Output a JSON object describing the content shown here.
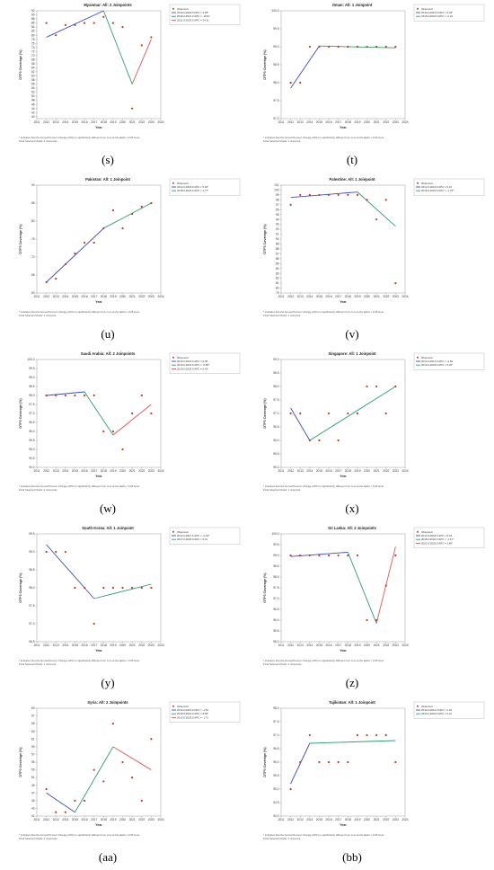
{
  "footnote_line1": "* Indicates that the Annual Percent Change (APC) is significantly different from zero at the alpha = 0.05 level.",
  "marker_color": "#c0392b",
  "segment_colors": [
    "#3b4cc0",
    "#2e9e6e",
    "#e05555"
  ],
  "chart_data": [
    {
      "id": "s",
      "letter": "(s)",
      "type": "line",
      "title": "Myanmar: All: 2 Joinpoints",
      "xlabel": "Year",
      "ylabel": "DTP3 Coverage (%)",
      "xlim": [
        2011,
        2024
      ],
      "ylim": [
        39,
        92
      ],
      "yticks": [
        40,
        42,
        44,
        46,
        48,
        50,
        52,
        54,
        56,
        58,
        60,
        62,
        64,
        66,
        68,
        70,
        72,
        74,
        76,
        78,
        80,
        82,
        84,
        86,
        88,
        90,
        92
      ],
      "observed_label": "Observed",
      "legend": [
        "2012.0-2018.0 APC = 4.29*",
        "2018.0-2021.0 APC = -18.97",
        "2021.0-2023.0 APC = 24.11"
      ],
      "observed": [
        [
          2012,
          86
        ],
        [
          2013,
          80
        ],
        [
          2014,
          85
        ],
        [
          2015,
          85
        ],
        [
          2016,
          86
        ],
        [
          2017,
          86
        ],
        [
          2018,
          89
        ],
        [
          2019,
          86
        ],
        [
          2020,
          84
        ],
        [
          2021,
          44
        ],
        [
          2022,
          75
        ],
        [
          2023,
          79
        ]
      ],
      "segments": [
        [
          [
            2012,
            79
          ],
          [
            2018,
            92
          ]
        ],
        [
          [
            2018,
            92
          ],
          [
            2021,
            56
          ]
        ],
        [
          [
            2021,
            56
          ],
          [
            2023,
            78
          ]
        ]
      ],
      "foot2": "Final Selected Model: 2 Joinpoints."
    },
    {
      "id": "t",
      "letter": "(t)",
      "type": "line",
      "title": "Oman: All: 1 Joinpoint",
      "xlabel": "Year",
      "ylabel": "DTP3 Coverage (%)",
      "xlim": [
        2011,
        2024
      ],
      "ylim": [
        97,
        100
      ],
      "yticks": [
        97.0,
        97.5,
        98.0,
        98.5,
        99.0,
        99.5,
        100.0
      ],
      "observed_label": "Observed",
      "legend": [
        "2012.0-2015.0 APC = 0.49*",
        "2015.0-2023.0 APC = -0.01"
      ],
      "observed": [
        [
          2012,
          98
        ],
        [
          2013,
          98
        ],
        [
          2014,
          99
        ],
        [
          2015,
          99
        ],
        [
          2016,
          99
        ],
        [
          2017,
          99
        ],
        [
          2018,
          99
        ],
        [
          2019,
          99
        ],
        [
          2020,
          99
        ],
        [
          2021,
          99
        ],
        [
          2022,
          99
        ],
        [
          2023,
          99
        ]
      ],
      "segments": [
        [
          [
            2012,
            97.85
          ],
          [
            2015,
            99.02
          ]
        ],
        [
          [
            2015,
            99.02
          ],
          [
            2023,
            98.97
          ]
        ]
      ],
      "foot2": "Final Selected Model: 1 Joinpoint."
    },
    {
      "id": "u",
      "letter": "(u)",
      "type": "line",
      "title": "Pakistan: All: 1 Joinpoint",
      "xlabel": "Year",
      "ylabel": "DTP3 Coverage (%)",
      "xlim": [
        2011,
        2024
      ],
      "ylim": [
        60,
        90
      ],
      "yticks": [
        60,
        65,
        70,
        75,
        80,
        85,
        90
      ],
      "observed_label": "Observed",
      "legend": [
        "2012.0-2018.0 APC = 5.02*",
        "2018.0-2023.0 APC = 1.77*"
      ],
      "observed": [
        [
          2012,
          63
        ],
        [
          2013,
          64
        ],
        [
          2014,
          68
        ],
        [
          2015,
          71
        ],
        [
          2016,
          74
        ],
        [
          2017,
          74
        ],
        [
          2018,
          78
        ],
        [
          2019,
          83
        ],
        [
          2020,
          78
        ],
        [
          2021,
          82
        ],
        [
          2022,
          84
        ],
        [
          2023,
          85
        ]
      ],
      "segments": [
        [
          [
            2012,
            63
          ],
          [
            2018,
            78
          ]
        ],
        [
          [
            2018,
            78
          ],
          [
            2023,
            85
          ]
        ]
      ],
      "foot2": "Final Selected Model: 1 Joinpoint."
    },
    {
      "id": "v",
      "letter": "(v)",
      "type": "line",
      "title": "Palestine: All: 1 Joinpoint",
      "xlabel": "Year",
      "ylabel": "DTP3 Coverage (%)",
      "xlim": [
        2011,
        2024
      ],
      "ylim": [
        79,
        101
      ],
      "yticks": [
        79,
        80,
        81,
        82,
        83,
        84,
        85,
        86,
        87,
        88,
        89,
        90,
        91,
        92,
        93,
        94,
        95,
        96,
        97,
        98,
        99,
        100,
        101
      ],
      "observed_label": "Observed",
      "legend": [
        "2012.0-2019.0 APC = 0.16",
        "2019.0-2023.0 APC = -1.79*"
      ],
      "observed": [
        [
          2012,
          97
        ],
        [
          2013,
          99
        ],
        [
          2014,
          99
        ],
        [
          2015,
          99
        ],
        [
          2016,
          99
        ],
        [
          2017,
          99
        ],
        [
          2018,
          99
        ],
        [
          2019,
          99
        ],
        [
          2020,
          98
        ],
        [
          2021,
          94
        ],
        [
          2022,
          98
        ],
        [
          2023,
          81
        ]
      ],
      "segments": [
        [
          [
            2012,
            98.5
          ],
          [
            2019,
            99.6
          ]
        ],
        [
          [
            2019,
            99.6
          ],
          [
            2023,
            92.6
          ]
        ]
      ],
      "foot2": "Final Selected Model: 1 Joinpoint."
    },
    {
      "id": "w",
      "letter": "(w)",
      "type": "line",
      "title": "Saudi Arabia: All: 2 Joinpoints",
      "xlabel": "Year",
      "ylabel": "DTP3 Coverage (%)",
      "xlim": [
        2011,
        2024
      ],
      "ylim": [
        94,
        100
      ],
      "yticks": [
        94.0,
        94.5,
        95.0,
        95.5,
        96.0,
        96.5,
        97.0,
        97.5,
        98.0,
        98.5,
        99.0,
        99.5,
        100.0
      ],
      "observed_label": "Observed",
      "legend": [
        "2012.0-2016.0 APC = 0.05",
        "2016.0-2019.0 APC = -0.65*",
        "2019.0-2023.0 APC = 0.42*"
      ],
      "observed": [
        [
          2012,
          98
        ],
        [
          2013,
          98
        ],
        [
          2014,
          98
        ],
        [
          2015,
          98
        ],
        [
          2016,
          98
        ],
        [
          2017,
          98
        ],
        [
          2018,
          96
        ],
        [
          2019,
          96
        ],
        [
          2020,
          95
        ],
        [
          2021,
          97
        ],
        [
          2022,
          98
        ],
        [
          2023,
          97
        ]
      ],
      "segments": [
        [
          [
            2012,
            98
          ],
          [
            2016,
            98.2
          ]
        ],
        [
          [
            2016,
            98.2
          ],
          [
            2019,
            95.8
          ]
        ],
        [
          [
            2019,
            95.8
          ],
          [
            2023,
            97.5
          ]
        ]
      ],
      "foot2": "Final Selected Model: 2 Joinpoints."
    },
    {
      "id": "x",
      "letter": "(x)",
      "type": "line",
      "title": "Singapore: All: 1 Joinpoint",
      "xlabel": "Year",
      "ylabel": "DTP3 Coverage (%)",
      "xlim": [
        2011,
        2024
      ],
      "ylim": [
        95,
        99
      ],
      "yticks": [
        95.0,
        95.5,
        96.0,
        96.5,
        97.0,
        97.5,
        98.0,
        98.5,
        99.0
      ],
      "observed_label": "Observed",
      "legend": [
        "2012.0-2014.0 APC = -0.63",
        "2014.0-2023.0 APC = 0.23*"
      ],
      "observed": [
        [
          2012,
          97
        ],
        [
          2013,
          97
        ],
        [
          2014,
          96
        ],
        [
          2015,
          96
        ],
        [
          2016,
          97
        ],
        [
          2017,
          96
        ],
        [
          2018,
          97
        ],
        [
          2019,
          97
        ],
        [
          2020,
          98
        ],
        [
          2021,
          98
        ],
        [
          2022,
          97
        ],
        [
          2023,
          98
        ]
      ],
      "segments": [
        [
          [
            2012,
            97.2
          ],
          [
            2014,
            96
          ]
        ],
        [
          [
            2014,
            96
          ],
          [
            2023,
            98
          ]
        ]
      ],
      "foot2": "Final Selected Model: 1 Joinpoint."
    },
    {
      "id": "y",
      "letter": "(y)",
      "type": "line",
      "title": "South Korea: All: 1 Joinpoint",
      "xlabel": "Year",
      "ylabel": "DTP3 Coverage (%)",
      "xlim": [
        2011,
        2024
      ],
      "ylim": [
        96.5,
        99.5
      ],
      "yticks": [
        96.5,
        97.0,
        97.5,
        98.0,
        98.5,
        99.0,
        99.5
      ],
      "observed_label": "Observed",
      "legend": [
        "2012.0-2017.0 APC = -0.24*",
        "2017.0-2023.0 APC = 0.10"
      ],
      "observed": [
        [
          2012,
          99
        ],
        [
          2013,
          99
        ],
        [
          2014,
          99
        ],
        [
          2015,
          98
        ],
        [
          2016,
          98
        ],
        [
          2017,
          97
        ],
        [
          2018,
          98
        ],
        [
          2019,
          98
        ],
        [
          2020,
          98
        ],
        [
          2021,
          98
        ],
        [
          2022,
          98
        ],
        [
          2023,
          98
        ]
      ],
      "segments": [
        [
          [
            2012,
            99.2
          ],
          [
            2017,
            97.7
          ]
        ],
        [
          [
            2017,
            97.7
          ],
          [
            2023,
            98.1
          ]
        ]
      ],
      "foot2": "Final Selected Model: 1 Joinpoint."
    },
    {
      "id": "z",
      "letter": "(z)",
      "type": "line",
      "title": "Sri Lanka: All: 2 Joinpoints",
      "xlabel": "Year",
      "ylabel": "DTP3 Coverage (%)",
      "xlim": [
        2011,
        2024
      ],
      "ylim": [
        95,
        100
      ],
      "yticks": [
        95.0,
        95.5,
        96.0,
        96.5,
        97.0,
        97.5,
        98.0,
        98.5,
        99.0,
        99.5,
        100.0
      ],
      "observed_label": "Observed",
      "legend": [
        "2012.0-2018.0 APC = 0.04",
        "2018.0-2021.0 APC = -1.11*",
        "2021.0-2023.0 APC = 1.60*"
      ],
      "observed": [
        [
          2012,
          99
        ],
        [
          2013,
          99
        ],
        [
          2014,
          99
        ],
        [
          2015,
          99
        ],
        [
          2016,
          99
        ],
        [
          2017,
          99
        ],
        [
          2018,
          99
        ],
        [
          2019,
          99
        ],
        [
          2020,
          96
        ],
        [
          2021,
          96
        ],
        [
          2022,
          97.6
        ],
        [
          2023,
          99
        ]
      ],
      "segments": [
        [
          [
            2012,
            98.95
          ],
          [
            2018,
            99.15
          ]
        ],
        [
          [
            2018,
            99.15
          ],
          [
            2021,
            95.85
          ]
        ],
        [
          [
            2021,
            95.85
          ],
          [
            2023,
            99.4
          ]
        ]
      ],
      "foot2": "Final Selected Model: 2 Joinpoints."
    },
    {
      "id": "aa",
      "letter": "(aa)",
      "type": "line",
      "title": "Syria: All: 2 Joinpoints",
      "xlabel": "Year",
      "ylabel": "DTP3 Coverage (%)",
      "xlim": [
        2011,
        2024
      ],
      "ylim": [
        41,
        69
      ],
      "yticks": [
        41,
        43,
        45,
        47,
        49,
        51,
        53,
        55,
        57,
        59,
        61,
        63,
        65,
        67,
        69
      ],
      "observed_label": "Observed",
      "legend": [
        "2012.0-2015.0 APC = -1.51",
        "2015.0-2019.0 APC = 8.56*",
        "2019.0-2023.0 APC = -1.71"
      ],
      "observed": [
        [
          2012,
          48
        ],
        [
          2013,
          42
        ],
        [
          2014,
          42
        ],
        [
          2015,
          45
        ],
        [
          2016,
          45
        ],
        [
          2017,
          53
        ],
        [
          2018,
          50
        ],
        [
          2019,
          65
        ],
        [
          2020,
          55
        ],
        [
          2021,
          51
        ],
        [
          2022,
          45
        ],
        [
          2023,
          61
        ]
      ],
      "segments": [
        [
          [
            2012,
            47
          ],
          [
            2015,
            42
          ]
        ],
        [
          [
            2015,
            42
          ],
          [
            2019,
            59
          ]
        ],
        [
          [
            2019,
            59
          ],
          [
            2023,
            53
          ]
        ]
      ],
      "foot2": "Final Selected Model: 2 Joinpoints."
    },
    {
      "id": "bb",
      "letter": "(bb)",
      "type": "line",
      "title": "Tajikistan: All: 1 Joinpoint",
      "xlabel": "Year",
      "ylabel": "DTP3 Coverage (%)",
      "xlim": [
        2011,
        2024
      ],
      "ylim": [
        94,
        98
      ],
      "yticks": [
        94.0,
        94.5,
        95.0,
        95.5,
        96.0,
        96.5,
        97.0,
        97.5,
        98.0
      ],
      "observed_label": "Observed",
      "legend": [
        "2012.0-2014.0 APC = 1.22",
        "2014.0-2023.0 APC = 0.01"
      ],
      "observed": [
        [
          2012,
          95
        ],
        [
          2013,
          96
        ],
        [
          2014,
          97
        ],
        [
          2015,
          96
        ],
        [
          2016,
          96
        ],
        [
          2017,
          96
        ],
        [
          2018,
          96
        ],
        [
          2019,
          97
        ],
        [
          2020,
          97
        ],
        [
          2021,
          97
        ],
        [
          2022,
          97
        ],
        [
          2023,
          96
        ]
      ],
      "segments": [
        [
          [
            2012,
            95.2
          ],
          [
            2014,
            96.7
          ]
        ],
        [
          [
            2014,
            96.7
          ],
          [
            2023,
            96.8
          ]
        ]
      ],
      "foot2": "Final Selected Model: 1 Joinpoint."
    }
  ]
}
